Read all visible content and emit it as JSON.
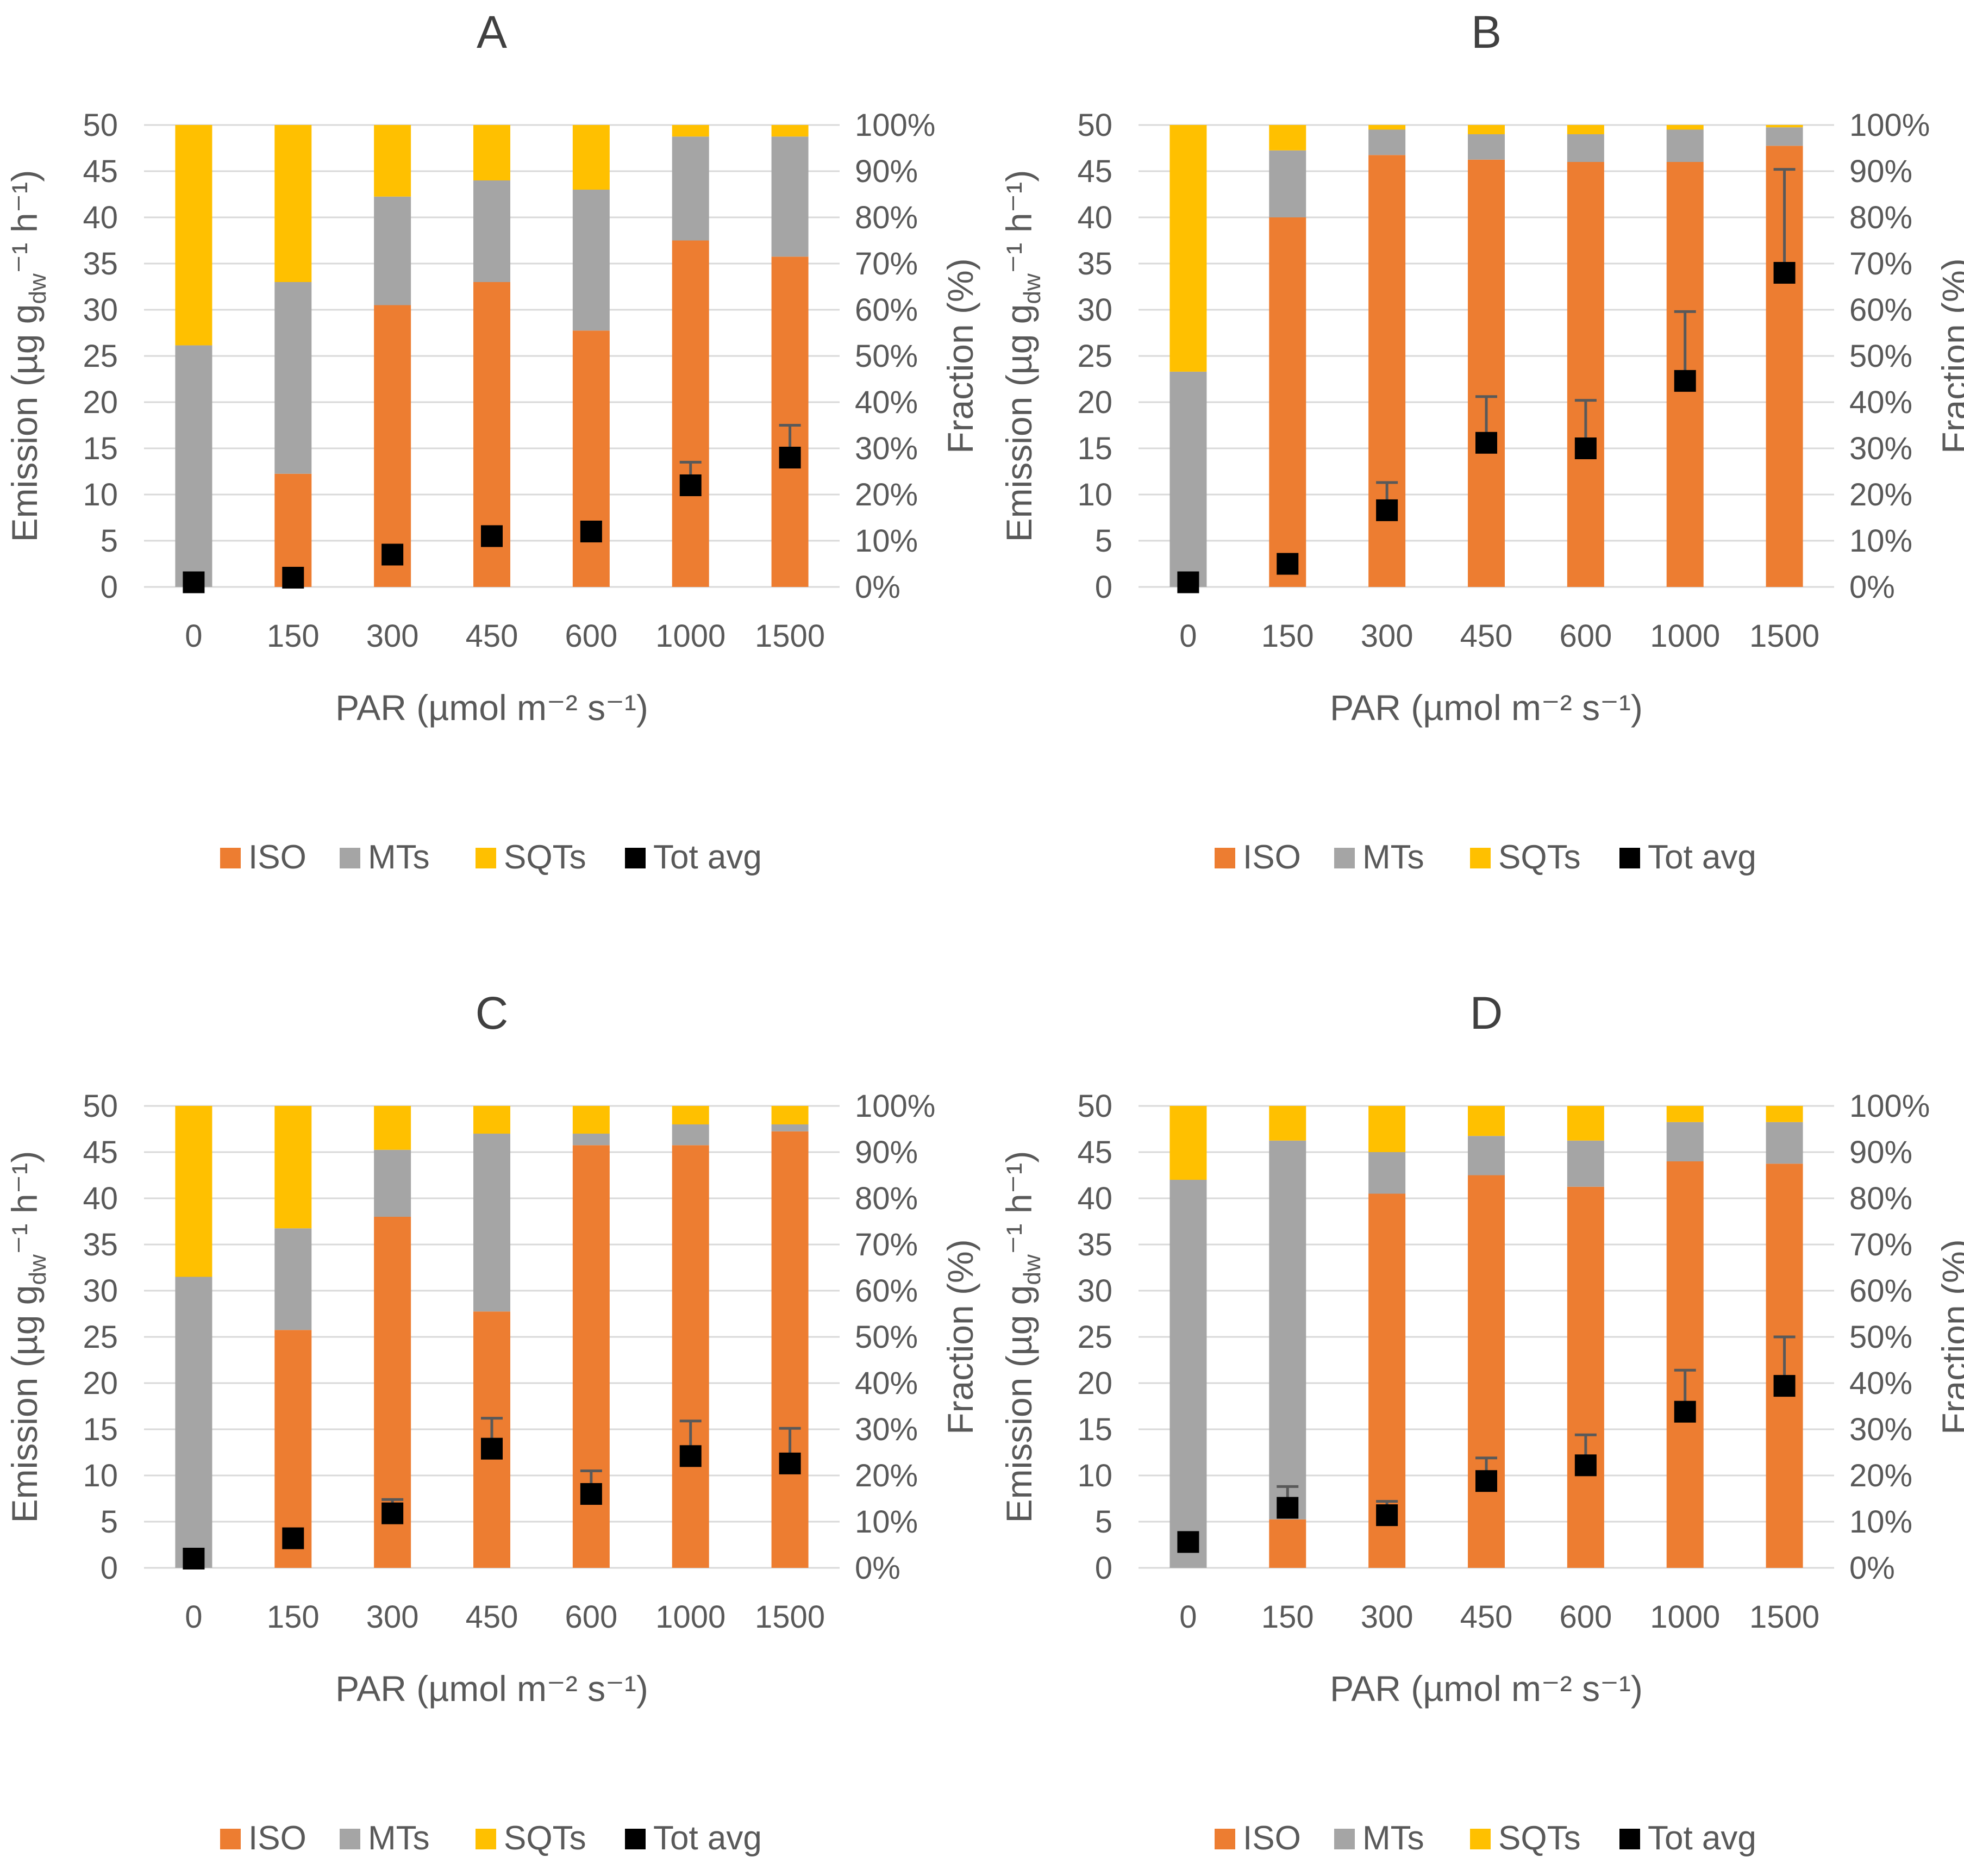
{
  "colors": {
    "iso": "#ED7D31",
    "mts": "#A5A5A5",
    "sqts": "#FFC000",
    "tot": "#000000",
    "grid": "#D9D9D9",
    "text": "#595959",
    "title": "#404040",
    "errorbar": "#595959"
  },
  "chart_data": [
    {
      "type": "bar",
      "title": "A",
      "xlabel": "PAR (µmol m⁻² s⁻¹)",
      "ylabel_parts": [
        "Emission (µg g",
        "dw",
        "⁻¹ h⁻¹)"
      ],
      "y2label": "Fraction (%)",
      "ylim": [
        0,
        50
      ],
      "y2lim": [
        0,
        100
      ],
      "yticks": [
        "0",
        "5",
        "10",
        "15",
        "20",
        "25",
        "30",
        "35",
        "40",
        "45",
        "50"
      ],
      "y2ticks": [
        "0%",
        "10%",
        "20%",
        "30%",
        "40%",
        "50%",
        "60%",
        "70%",
        "80%",
        "90%",
        "100%"
      ],
      "categories": [
        "0",
        "150",
        "300",
        "450",
        "600",
        "1000",
        "1500"
      ],
      "series": [
        {
          "name": "ISO",
          "axis": "fraction",
          "values": [
            0,
            24.5,
            61,
            66,
            55.5,
            75,
            71.5
          ]
        },
        {
          "name": "MTs",
          "axis": "fraction",
          "values": [
            52.3,
            41.5,
            23.5,
            22,
            30.5,
            22.5,
            26
          ]
        },
        {
          "name": "SQTs",
          "axis": "fraction",
          "values": [
            47.7,
            34,
            15.5,
            12,
            14,
            2.5,
            2.5
          ]
        },
        {
          "name": "Tot avg",
          "axis": "emission",
          "values": [
            0.5,
            1.0,
            3.5,
            5.5,
            6.0,
            11.0,
            14.0
          ],
          "error": [
            0,
            0,
            0,
            1.0,
            1.0,
            2.5,
            3.5
          ]
        }
      ],
      "legend": [
        "ISO",
        "MTs",
        "SQTs",
        "Tot avg"
      ],
      "legend_position": "bottom"
    },
    {
      "type": "bar",
      "title": "B",
      "xlabel": "PAR (µmol m⁻² s⁻¹)",
      "ylabel_parts": [
        "Emission (µg g",
        "dw",
        "⁻¹ h⁻¹)"
      ],
      "y2label": "Fraction (%)",
      "ylim": [
        0,
        50
      ],
      "y2lim": [
        0,
        100
      ],
      "yticks": [
        "0",
        "5",
        "10",
        "15",
        "20",
        "25",
        "30",
        "35",
        "40",
        "45",
        "50"
      ],
      "y2ticks": [
        "0%",
        "10%",
        "20%",
        "30%",
        "40%",
        "50%",
        "60%",
        "70%",
        "80%",
        "90%",
        "100%"
      ],
      "categories": [
        "0",
        "150",
        "300",
        "450",
        "600",
        "1000",
        "1500"
      ],
      "series": [
        {
          "name": "ISO",
          "axis": "fraction",
          "values": [
            0,
            80,
            93.5,
            92.5,
            92,
            92,
            95.5
          ]
        },
        {
          "name": "MTs",
          "axis": "fraction",
          "values": [
            46.6,
            14.5,
            5.5,
            5.5,
            6,
            7,
            4
          ]
        },
        {
          "name": "SQTs",
          "axis": "fraction",
          "values": [
            53.4,
            5.5,
            1,
            2,
            2,
            1,
            0.5
          ]
        },
        {
          "name": "Tot avg",
          "axis": "emission",
          "values": [
            0.5,
            2.5,
            8.3,
            15.6,
            15.0,
            22.3,
            34.0
          ],
          "error": [
            0,
            0,
            3.0,
            5.0,
            5.2,
            7.5,
            11.2
          ]
        }
      ],
      "legend": [
        "ISO",
        "MTs",
        "SQTs",
        "Tot avg"
      ],
      "legend_position": "bottom"
    },
    {
      "type": "bar",
      "title": "C",
      "xlabel": "PAR (µmol m⁻² s⁻¹)",
      "ylabel_parts": [
        "Emission (µg g",
        "dw",
        "⁻¹ h⁻¹)"
      ],
      "y2label": "Fraction (%)",
      "ylim": [
        0,
        50
      ],
      "y2lim": [
        0,
        100
      ],
      "yticks": [
        "0",
        "5",
        "10",
        "15",
        "20",
        "25",
        "30",
        "35",
        "40",
        "45",
        "50"
      ],
      "y2ticks": [
        "0%",
        "10%",
        "20%",
        "30%",
        "40%",
        "50%",
        "60%",
        "70%",
        "80%",
        "90%",
        "100%"
      ],
      "categories": [
        "0",
        "150",
        "300",
        "450",
        "600",
        "1000",
        "1500"
      ],
      "series": [
        {
          "name": "ISO",
          "axis": "fraction",
          "values": [
            0,
            51.5,
            76,
            55.5,
            91.5,
            91.5,
            94.5
          ]
        },
        {
          "name": "MTs",
          "axis": "fraction",
          "values": [
            63,
            22,
            14.5,
            38.5,
            2.5,
            4.5,
            1.5
          ]
        },
        {
          "name": "SQTs",
          "axis": "fraction",
          "values": [
            37,
            26.5,
            9.5,
            6,
            6,
            4,
            4
          ]
        },
        {
          "name": "Tot avg",
          "axis": "emission",
          "values": [
            1.0,
            3.2,
            5.9,
            12.9,
            8.0,
            12.1,
            11.3
          ],
          "error": [
            0,
            0,
            1.5,
            3.3,
            2.5,
            3.8,
            3.8
          ]
        }
      ],
      "legend": [
        "ISO",
        "MTs",
        "SQTs",
        "Tot avg"
      ],
      "legend_position": "bottom"
    },
    {
      "type": "bar",
      "title": "D",
      "xlabel": "PAR (µmol m⁻² s⁻¹)",
      "ylabel_parts": [
        "Emission (µg g",
        "dw",
        "⁻¹ h⁻¹)"
      ],
      "y2label": "Fraction (%)",
      "ylim": [
        0,
        50
      ],
      "y2lim": [
        0,
        100
      ],
      "yticks": [
        "0",
        "5",
        "10",
        "15",
        "20",
        "25",
        "30",
        "35",
        "40",
        "45",
        "50"
      ],
      "y2ticks": [
        "0%",
        "10%",
        "20%",
        "30%",
        "40%",
        "50%",
        "60%",
        "70%",
        "80%",
        "90%",
        "100%"
      ],
      "categories": [
        "0",
        "150",
        "300",
        "450",
        "600",
        "1000",
        "1500"
      ],
      "series": [
        {
          "name": "ISO",
          "axis": "fraction",
          "values": [
            0,
            10.5,
            81,
            85,
            82.5,
            88,
            87.5
          ]
        },
        {
          "name": "MTs",
          "axis": "fraction",
          "values": [
            84,
            82,
            9,
            8.5,
            10,
            8.5,
            9
          ]
        },
        {
          "name": "SQTs",
          "axis": "fraction",
          "values": [
            16,
            7.5,
            10,
            6.5,
            7.5,
            3.5,
            3.5
          ]
        },
        {
          "name": "Tot avg",
          "axis": "emission",
          "values": [
            2.8,
            6.5,
            5.7,
            9.4,
            11.1,
            16.9,
            19.7
          ],
          "error": [
            0,
            2.3,
            1.5,
            2.5,
            3.3,
            4.5,
            5.3
          ]
        }
      ],
      "legend": [
        "ISO",
        "MTs",
        "SQTs",
        "Tot avg"
      ],
      "legend_position": "bottom"
    }
  ]
}
